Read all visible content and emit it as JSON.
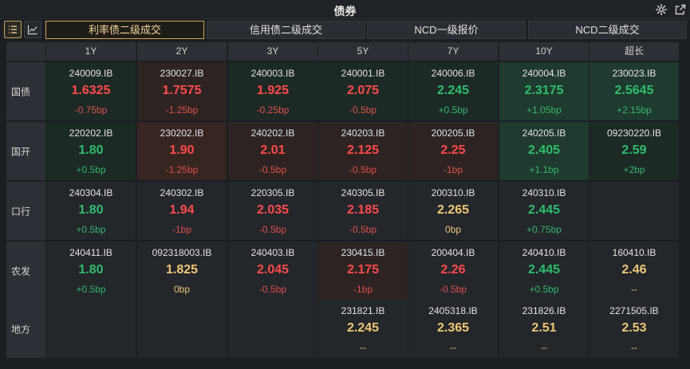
{
  "window": {
    "title": "债券"
  },
  "icons": {
    "settings": "gear-icon",
    "popout": "popout-icon",
    "list": "list-icon",
    "chart": "line-chart-icon"
  },
  "tabs": [
    {
      "label": "利率债二级成交",
      "active": true
    },
    {
      "label": "信用债二级成交",
      "active": false
    },
    {
      "label": "NCD一级报价",
      "active": false
    },
    {
      "label": "NCD二级成交",
      "active": false
    }
  ],
  "columns": [
    "1Y",
    "2Y",
    "3Y",
    "5Y",
    "7Y",
    "10Y",
    "超长"
  ],
  "rows": [
    {
      "label": "国债",
      "cells": [
        {
          "code": "240009.IB",
          "yield": "1.6325",
          "change": "-0.75bp",
          "dir": "up",
          "bg": "green1"
        },
        {
          "code": "230027.IB",
          "yield": "1.7575",
          "change": "-1.25bp",
          "dir": "up",
          "bg": "red1"
        },
        {
          "code": "240003.IB",
          "yield": "1.925",
          "change": "-0.25bp",
          "dir": "up",
          "bg": "green1"
        },
        {
          "code": "240001.IB",
          "yield": "2.075",
          "change": "-0.5bp",
          "dir": "up",
          "bg": "green1"
        },
        {
          "code": "240006.IB",
          "yield": "2.245",
          "change": "+0.5bp",
          "dir": "down",
          "bg": "green1"
        },
        {
          "code": "240004.IB",
          "yield": "2.3175",
          "change": "+1.05bp",
          "dir": "down",
          "bg": "green2"
        },
        {
          "code": "230023.IB",
          "yield": "2.5645",
          "change": "+2.15bp",
          "dir": "down",
          "bg": "green2"
        }
      ]
    },
    {
      "label": "国开",
      "cells": [
        {
          "code": "220202.IB",
          "yield": "1.80",
          "change": "+0.5bp",
          "dir": "down",
          "bg": "green1"
        },
        {
          "code": "230202.IB",
          "yield": "1.90",
          "change": "-1.25bp",
          "dir": "up",
          "bg": "red2"
        },
        {
          "code": "240202.IB",
          "yield": "2.01",
          "change": "-0.5bp",
          "dir": "up",
          "bg": "red1"
        },
        {
          "code": "240203.IB",
          "yield": "2.125",
          "change": "-0.5bp",
          "dir": "up",
          "bg": "red1"
        },
        {
          "code": "200205.IB",
          "yield": "2.25",
          "change": "-1bp",
          "dir": "up",
          "bg": "red1"
        },
        {
          "code": "240205.IB",
          "yield": "2.405",
          "change": "+1.1bp",
          "dir": "down",
          "bg": "green2"
        },
        {
          "code": "09230220.IB",
          "yield": "2.59",
          "change": "+2bp",
          "dir": "down",
          "bg": "green1"
        }
      ]
    },
    {
      "label": "口行",
      "cells": [
        {
          "code": "240304.IB",
          "yield": "1.80",
          "change": "+0.5bp",
          "dir": "down",
          "bg": "neutral"
        },
        {
          "code": "240302.IB",
          "yield": "1.94",
          "change": "-1bp",
          "dir": "up",
          "bg": "neutral"
        },
        {
          "code": "220305.IB",
          "yield": "2.035",
          "change": "-0.5bp",
          "dir": "up",
          "bg": "neutral"
        },
        {
          "code": "240305.IB",
          "yield": "2.185",
          "change": "-0.5bp",
          "dir": "up",
          "bg": "neutral"
        },
        {
          "code": "200310.IB",
          "yield": "2.265",
          "change": "0bp",
          "dir": "flat",
          "bg": "neutral"
        },
        {
          "code": "240310.IB",
          "yield": "2.445",
          "change": "+0.75bp",
          "dir": "down",
          "bg": "neutral"
        },
        {
          "code": "",
          "yield": "",
          "change": "",
          "dir": "flat",
          "bg": "empty"
        }
      ]
    },
    {
      "label": "农发",
      "cells": [
        {
          "code": "240411.IB",
          "yield": "1.80",
          "change": "+0.5bp",
          "dir": "down",
          "bg": "neutral"
        },
        {
          "code": "092318003.IB",
          "yield": "1.825",
          "change": "0bp",
          "dir": "flat",
          "bg": "neutral"
        },
        {
          "code": "240403.IB",
          "yield": "2.045",
          "change": "-0.5bp",
          "dir": "up",
          "bg": "neutral"
        },
        {
          "code": "230415.IB",
          "yield": "2.175",
          "change": "-1bp",
          "dir": "up",
          "bg": "red1"
        },
        {
          "code": "200404.IB",
          "yield": "2.26",
          "change": "-0.5bp",
          "dir": "up",
          "bg": "neutral"
        },
        {
          "code": "240410.IB",
          "yield": "2.445",
          "change": "+0.5bp",
          "dir": "down",
          "bg": "neutral"
        },
        {
          "code": "160410.IB",
          "yield": "2.46",
          "change": "--",
          "dir": "flat",
          "bg": "neutral"
        }
      ]
    },
    {
      "label": "地方",
      "cells": [
        {
          "code": "",
          "yield": "",
          "change": "",
          "dir": "flat",
          "bg": "empty"
        },
        {
          "code": "",
          "yield": "",
          "change": "",
          "dir": "flat",
          "bg": "empty"
        },
        {
          "code": "",
          "yield": "",
          "change": "",
          "dir": "flat",
          "bg": "empty"
        },
        {
          "code": "231821.IB",
          "yield": "2.245",
          "change": "--",
          "dir": "flat",
          "bg": "neutral"
        },
        {
          "code": "2405318.IB",
          "yield": "2.365",
          "change": "--",
          "dir": "flat",
          "bg": "neutral"
        },
        {
          "code": "231826.IB",
          "yield": "2.51",
          "change": "--",
          "dir": "flat",
          "bg": "neutral"
        },
        {
          "code": "2271505.IB",
          "yield": "2.53",
          "change": "--",
          "dir": "flat",
          "bg": "neutral"
        }
      ]
    }
  ]
}
